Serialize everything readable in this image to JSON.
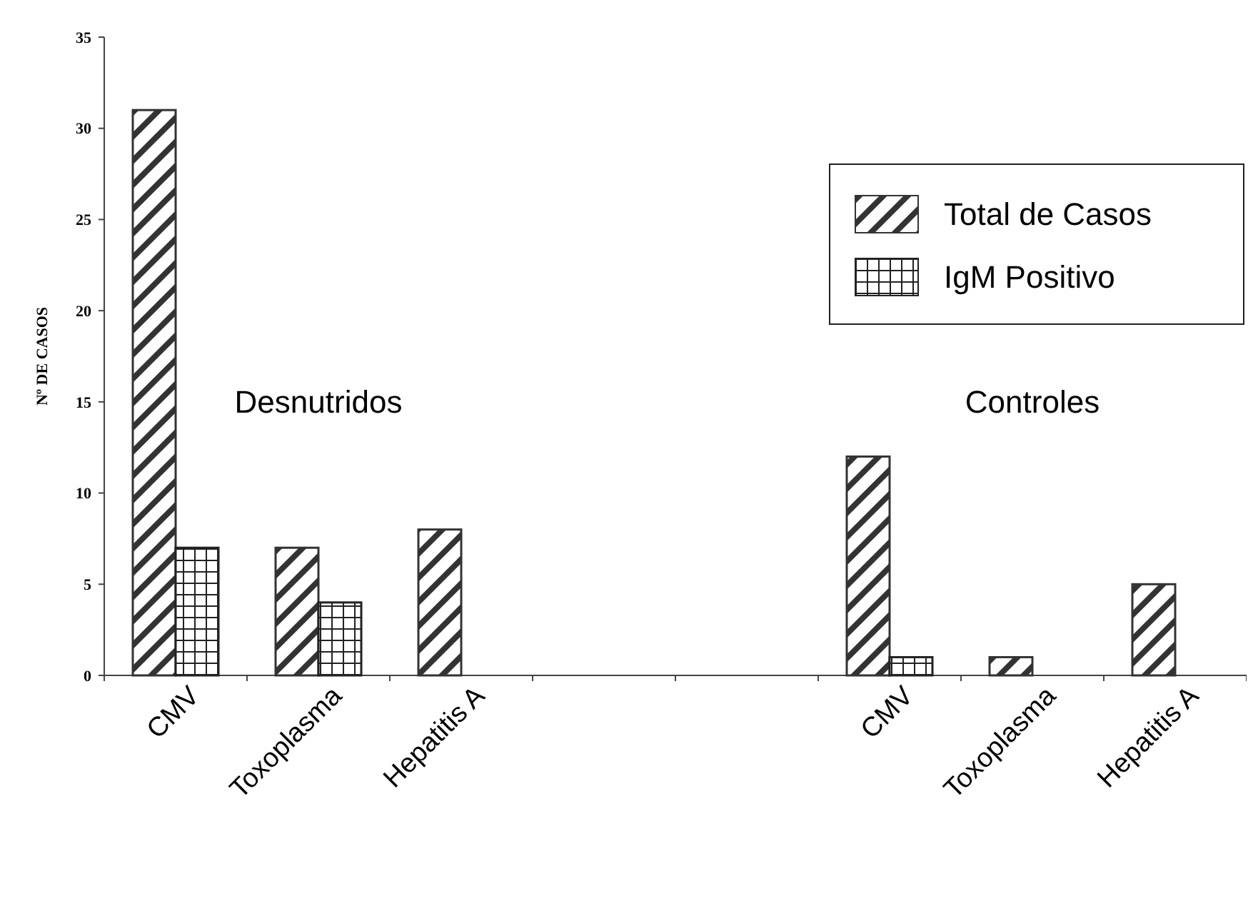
{
  "chart_data": {
    "type": "bar",
    "ylabel": "Nº DE CASOS",
    "categories": [
      "CMV",
      "Toxoplasma",
      "Hepatitis A",
      null,
      null,
      "CMV",
      "Toxoplasma",
      "Hepatitis A"
    ],
    "series": [
      {
        "name": "Total de Casos",
        "color": "#333333",
        "values": [
          31,
          7,
          8,
          null,
          null,
          12,
          1,
          5
        ]
      },
      {
        "name": "IgM Positivo",
        "color": "#222222",
        "values": [
          7,
          4,
          null,
          null,
          null,
          1,
          null,
          null
        ]
      }
    ],
    "ylim": [
      0,
      35
    ],
    "yticks": [
      0,
      5,
      10,
      15,
      20,
      25,
      30,
      35
    ],
    "annotations": [
      "Desnutridos",
      "Controles"
    ],
    "legend": "top right",
    "grid": false
  }
}
